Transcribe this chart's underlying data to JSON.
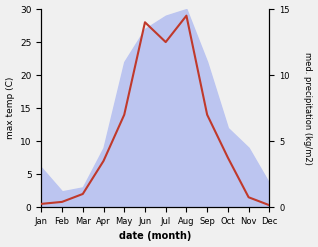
{
  "months": [
    "Jan",
    "Feb",
    "Mar",
    "Apr",
    "May",
    "Jun",
    "Jul",
    "Aug",
    "Sep",
    "Oct",
    "Nov",
    "Dec"
  ],
  "temp": [
    0.5,
    0.8,
    2.0,
    7.0,
    14.0,
    28.0,
    25.0,
    29.0,
    14.0,
    7.5,
    1.5,
    0.3
  ],
  "precip": [
    3.0,
    1.2,
    1.5,
    4.5,
    11.0,
    13.5,
    14.5,
    15.0,
    11.0,
    6.0,
    4.5,
    1.8
  ],
  "temp_color": "#c0392b",
  "precip_fill_color": "#bcc5f0",
  "temp_ylim": [
    0,
    30
  ],
  "precip_ylim": [
    0,
    15
  ],
  "temp_ylabel": "max temp (C)",
  "precip_ylabel": "med. precipitation (kg/m2)",
  "xlabel": "date (month)",
  "temp_yticks": [
    0,
    5,
    10,
    15,
    20,
    25,
    30
  ],
  "precip_yticks": [
    0,
    5,
    10,
    15
  ],
  "bg_color": "#f0f0f0"
}
